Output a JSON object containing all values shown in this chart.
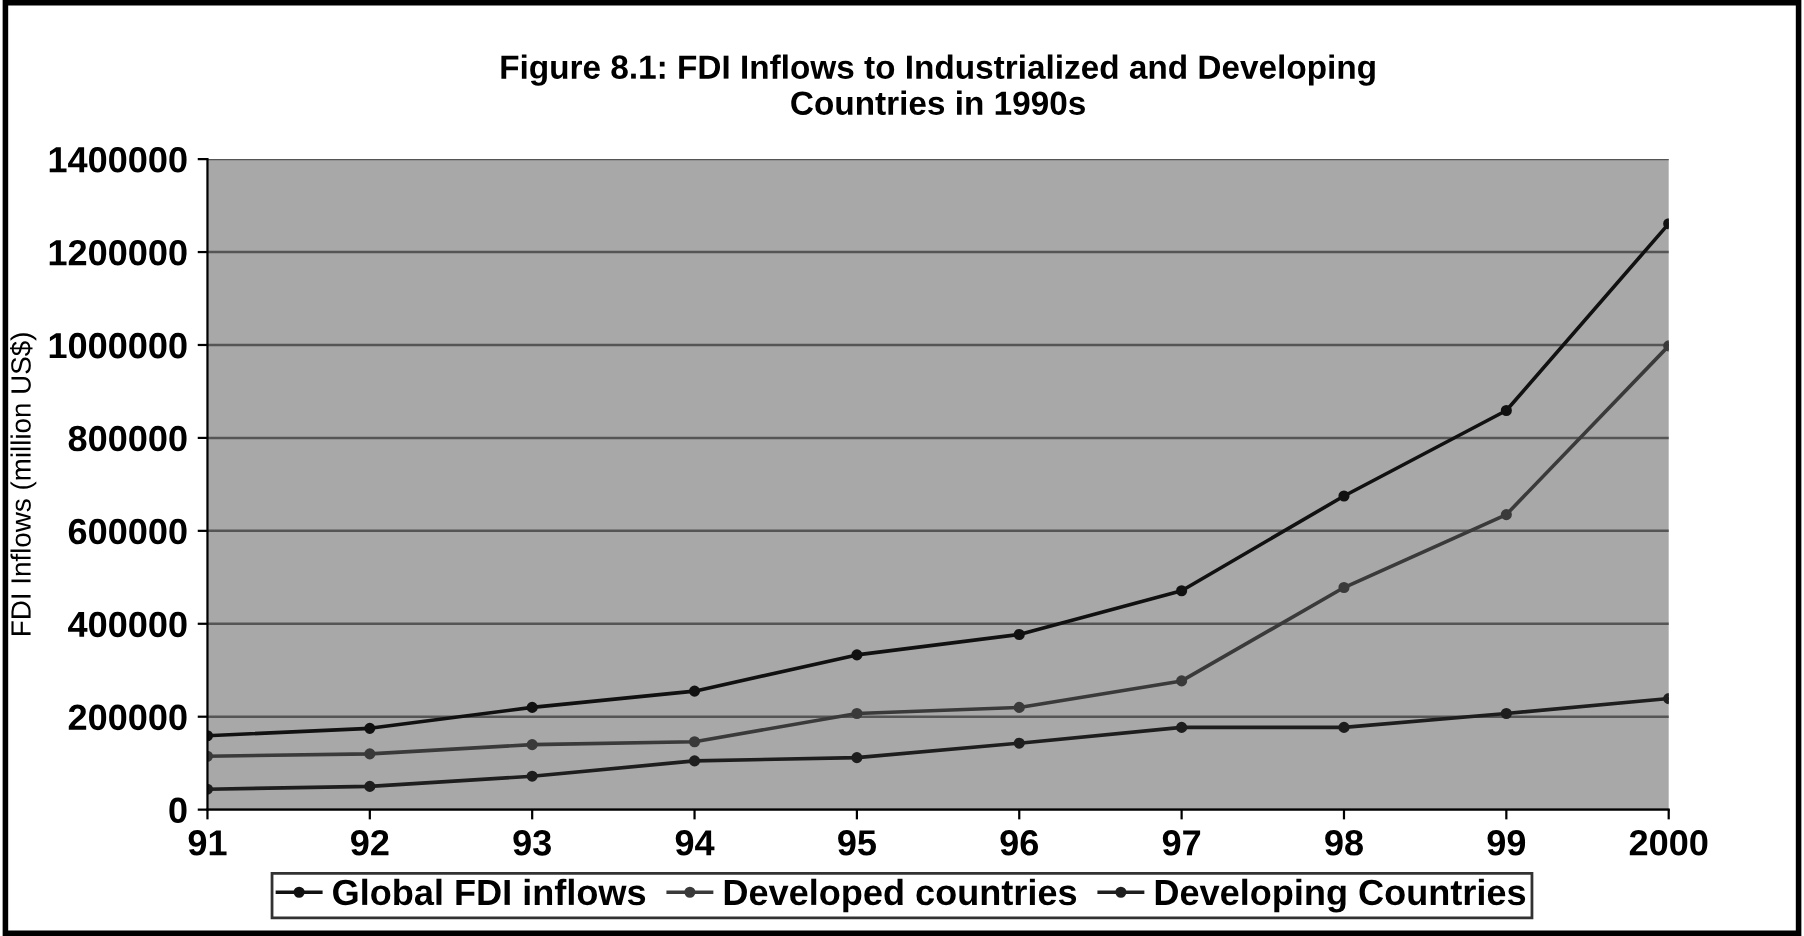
{
  "chart_data": {
    "type": "line",
    "title": "Figure 8.1: FDI Inflows to Industrialized and Developing\nCountries in 1990s",
    "ylabel": "FDI Inflows (million US$)",
    "categories": [
      "91",
      "92",
      "93",
      "94",
      "95",
      "96",
      "97",
      "98",
      "99",
      "2000"
    ],
    "series": [
      {
        "name": "Global FDI inflows",
        "color": "#111111",
        "values": [
          159000,
          175000,
          220000,
          255000,
          333000,
          377000,
          471000,
          675000,
          859000,
          1261000
        ]
      },
      {
        "name": "Developed countries",
        "color": "#3a3a3a",
        "values": [
          115000,
          120000,
          140000,
          146000,
          207000,
          220000,
          277000,
          478000,
          635000,
          998000
        ]
      },
      {
        "name": "Developing Countries",
        "color": "#1e1e1e",
        "values": [
          44000,
          50000,
          72000,
          105000,
          112000,
          143000,
          177000,
          177000,
          207000,
          239000
        ]
      }
    ],
    "ylim": [
      0,
      1400000
    ],
    "yticks": [
      0,
      200000,
      400000,
      600000,
      800000,
      1000000,
      1200000,
      1400000
    ],
    "grid": "y",
    "legend": "bottom",
    "marker": "circle",
    "line_style": "solid"
  }
}
